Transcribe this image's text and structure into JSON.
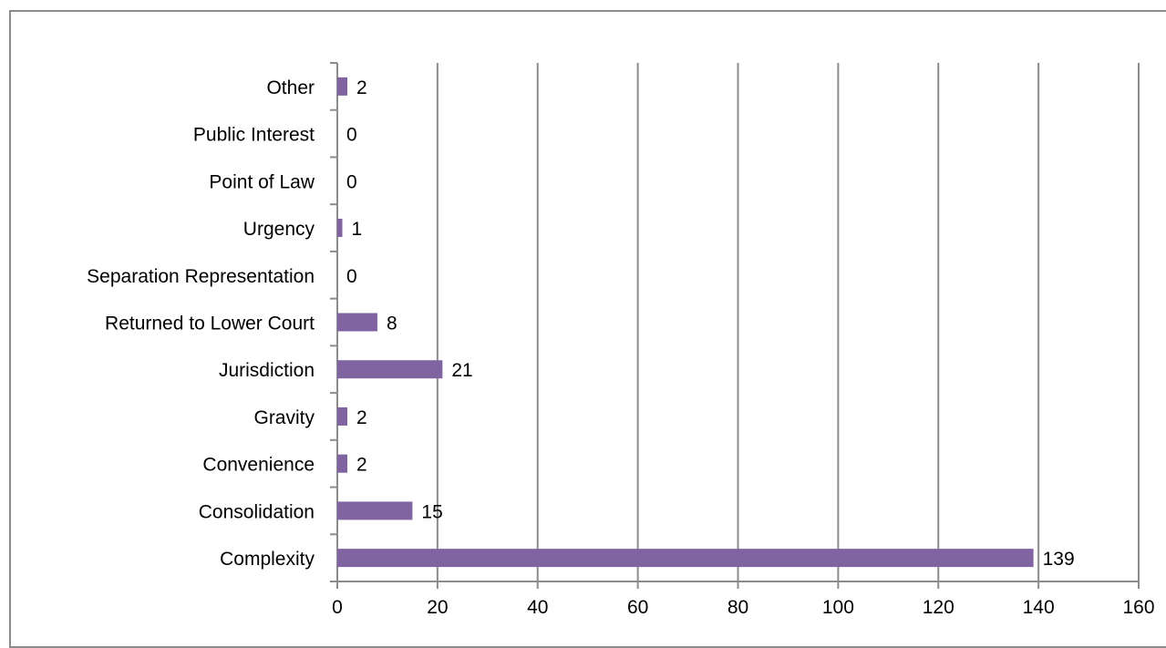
{
  "chart_data": {
    "type": "bar",
    "orientation": "horizontal",
    "title": "",
    "xlabel": "",
    "ylabel": "",
    "categories": [
      "Complexity",
      "Consolidation",
      "Convenience",
      "Gravity",
      "Jurisdiction",
      "Returned to Lower Court",
      "Separation Representation",
      "Urgency",
      "Point of Law",
      "Public Interest",
      "Other"
    ],
    "values": [
      139,
      15,
      2,
      2,
      21,
      8,
      0,
      1,
      0,
      0,
      2
    ],
    "value_labels": [
      "139",
      "15",
      "2",
      "2",
      "21",
      "8",
      "0",
      "1",
      "0",
      "0",
      "2"
    ],
    "xlim": [
      0,
      160
    ],
    "x_ticks": [
      "0",
      "20",
      "40",
      "60",
      "80",
      "100",
      "120",
      "140",
      "160"
    ],
    "grid": "vertical",
    "legend": "none",
    "colors": {
      "bar": "#8064a2",
      "grid": "#8c8c8c",
      "axis": "#8c8c8c",
      "frame": "#8c8c8c"
    }
  }
}
